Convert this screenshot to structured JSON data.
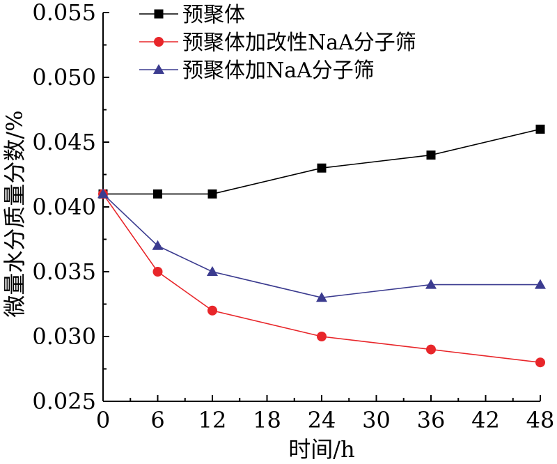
{
  "chart_data": {
    "type": "line",
    "title": "",
    "xlabel": "时间/h",
    "ylabel": "微量水分质量分数/%",
    "xlim": [
      0,
      48
    ],
    "ylim": [
      0.025,
      0.055
    ],
    "x_ticks": [
      "0",
      "6",
      "12",
      "18",
      "24",
      "30",
      "36",
      "42",
      "48"
    ],
    "y_ticks": [
      "0.025",
      "0.030",
      "0.035",
      "0.040",
      "0.045",
      "0.050",
      "0.055"
    ],
    "grid": false,
    "legend_position": "top-left",
    "series": [
      {
        "name": "预聚体",
        "color": "#000000",
        "marker": "square",
        "x": [
          0,
          6,
          12,
          24,
          36,
          48
        ],
        "y": [
          0.041,
          0.041,
          0.041,
          0.043,
          0.044,
          0.046
        ]
      },
      {
        "name": "预聚体加改性NaA分子筛",
        "color": "#e8262a",
        "marker": "circle",
        "x": [
          0,
          6,
          12,
          24,
          36,
          48
        ],
        "y": [
          0.041,
          0.035,
          0.032,
          0.03,
          0.029,
          0.028
        ]
      },
      {
        "name": "预聚体加NaA分子筛",
        "color": "#3b3b8f",
        "marker": "triangle",
        "x": [
          0,
          6,
          12,
          24,
          36,
          48
        ],
        "y": [
          0.041,
          0.037,
          0.035,
          0.033,
          0.034,
          0.034
        ]
      }
    ]
  }
}
